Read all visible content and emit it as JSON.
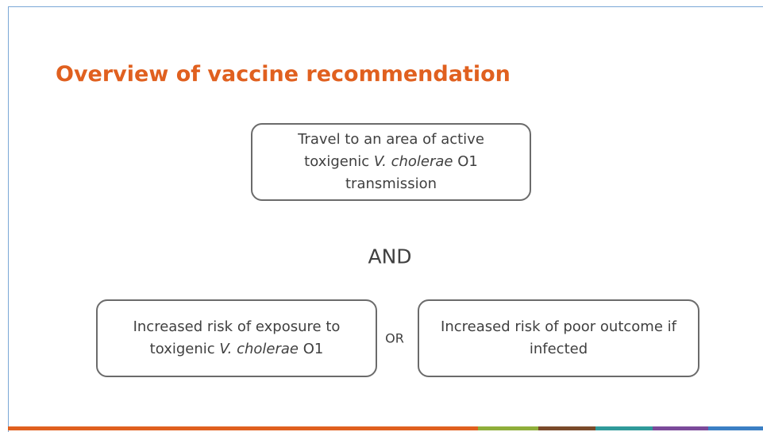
{
  "title": "Overview of vaccine recommendation",
  "nodes": [
    {
      "parts": [
        "Travel to an area of active toxigenic ",
        "V. cholerae",
        " O1 transmission"
      ]
    },
    {
      "parts": [
        "Increased risk of exposure to toxigenic ",
        "V. cholerae",
        " O1"
      ]
    },
    {
      "parts": [
        "Increased risk of poor outcome if infected"
      ]
    }
  ],
  "connectors": {
    "and": "AND",
    "or": "OR"
  }
}
